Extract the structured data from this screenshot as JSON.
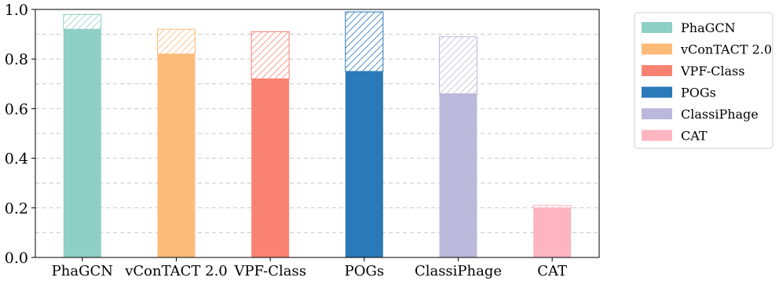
{
  "chart_data": {
    "type": "bar",
    "title": "",
    "xlabel": "",
    "ylabel": "",
    "categories": [
      "PhaGCN",
      "vConTACT 2.0",
      "VPF-Class",
      "POGs",
      "ClassiPhage",
      "CAT"
    ],
    "colors": [
      "#8ecfc6",
      "#fdbb7a",
      "#f98272",
      "#2a79b9",
      "#bcb8db",
      "#fdb5c2"
    ],
    "series": [
      {
        "values": [
          0.92,
          0.82,
          0.72,
          0.75,
          0.66,
          0.2
        ]
      },
      {
        "style": "hatched",
        "values": [
          0.06,
          0.1,
          0.19,
          0.24,
          0.23,
          0.01
        ]
      }
    ],
    "ylim": [
      0,
      1.0
    ],
    "yticks": [
      0.0,
      0.2,
      0.4,
      0.6,
      0.8,
      1.0
    ],
    "ytick_labels": [
      "0.0",
      "0.2",
      "0.4",
      "0.6",
      "0.8",
      "1.0"
    ],
    "grid": "y-dashed",
    "legend": {
      "placement": "outside-right",
      "entries": [
        "PhaGCN",
        "vConTACT 2.0",
        "VPF-Class",
        "POGs",
        "ClassiPhage",
        "CAT"
      ]
    }
  }
}
